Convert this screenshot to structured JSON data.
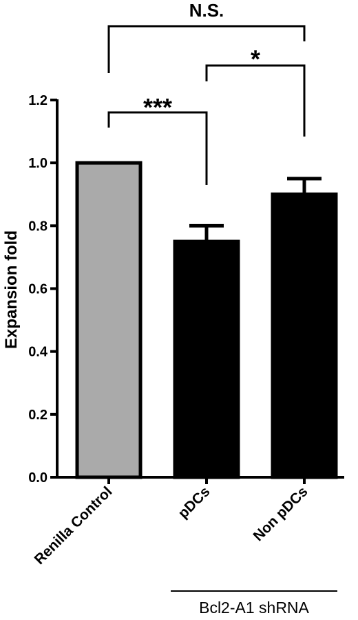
{
  "chart_data": {
    "type": "bar",
    "ylabel": "Expansion fold",
    "ylim": [
      0,
      1.2
    ],
    "yticks": [
      "0.0",
      "0.2",
      "0.4",
      "0.6",
      "0.8",
      "1.0",
      "1.2"
    ],
    "categories": [
      "Renilla Control",
      "pDCs",
      "Non pDCs"
    ],
    "values": [
      1.0,
      0.75,
      0.9
    ],
    "errors": [
      0,
      0.05,
      0.05
    ],
    "bar_colors": [
      "#aaaaaa",
      "#000000",
      "#000000"
    ],
    "group_label": "Bcl2-A1 shRNA",
    "significance": [
      {
        "from": 0,
        "to": 2,
        "label": "N.S."
      },
      {
        "from": 1,
        "to": 2,
        "label": "*"
      },
      {
        "from": 0,
        "to": 1,
        "label": "***"
      }
    ]
  }
}
